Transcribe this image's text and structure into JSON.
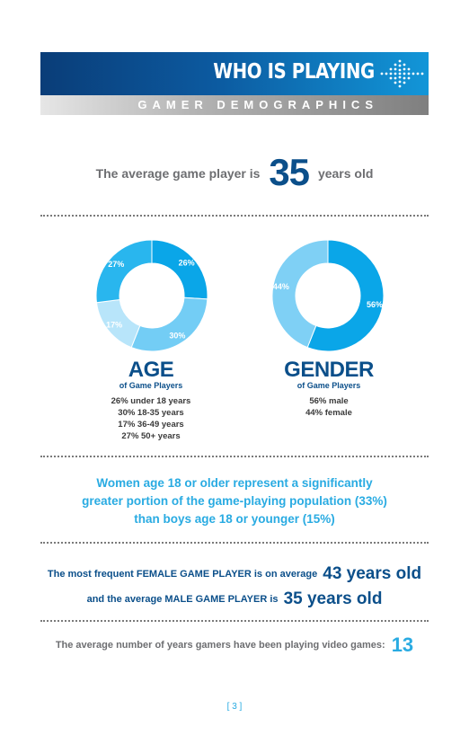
{
  "header": {
    "title": "WHO IS PLAYING",
    "subtitle": "GAMER DEMOGRAPHICS"
  },
  "average_age": {
    "prefix": "The average game player is",
    "value": "35",
    "suffix": "years old"
  },
  "age_section": {
    "heading": "AGE",
    "subheading": "of Game Players",
    "lines": [
      "26% under 18 years",
      "30% 18-35 years",
      "17% 36-49 years",
      "27% 50+ years"
    ]
  },
  "gender_section": {
    "heading": "GENDER",
    "subheading": "of Game Players",
    "lines": [
      "56% male",
      "44% female"
    ]
  },
  "chart_data": [
    {
      "type": "pie",
      "title": "AGE",
      "categories": [
        "under 18 years",
        "18-35 years",
        "36-49 years",
        "50+ years"
      ],
      "values": [
        26,
        30,
        17,
        27
      ],
      "labels": [
        "26%",
        "30%",
        "17%",
        "27%"
      ],
      "colors": [
        "#0aa6e8",
        "#73cdf5",
        "#b8e5fa",
        "#29b6ee"
      ]
    },
    {
      "type": "pie",
      "title": "GENDER",
      "categories": [
        "male",
        "female"
      ],
      "values": [
        56,
        44
      ],
      "labels": [
        "56%",
        "44%"
      ],
      "colors": [
        "#0aa6e8",
        "#7fd0f5"
      ]
    }
  ],
  "women_stat": {
    "line1": "Women age 18 or older represent a significantly",
    "line2": "greater portion of the game-playing population (33%)",
    "line3": "than boys age 18 or younger (15%)"
  },
  "frequent_player": {
    "female_prefix": "The most frequent FEMALE GAME PLAYER is on average",
    "female_value": "43 years old",
    "male_prefix": "and the average MALE GAME PLAYER is",
    "male_value": "35 years old"
  },
  "years_played": {
    "text": "The average number of years gamers have been playing video games:",
    "value": "13"
  },
  "page_number": "[ 3 ]"
}
